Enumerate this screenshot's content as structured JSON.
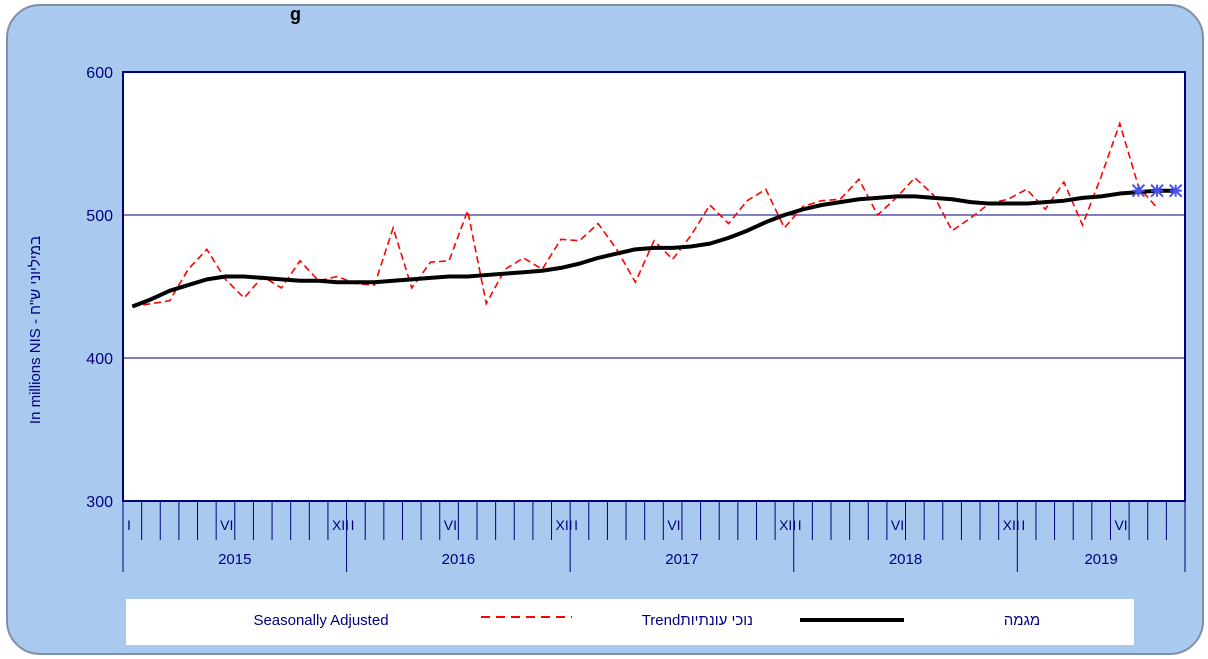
{
  "header": {
    "title_fragment": "g"
  },
  "chart_data": {
    "type": "line",
    "ylabel": "In millions NIS - במיליוני ש\"ח",
    "ylim": [
      300,
      600
    ],
    "yticks": [
      300,
      400,
      500,
      600
    ],
    "grid": "horizontal",
    "legend_position": "bottom",
    "years": [
      "2015",
      "2016",
      "2017",
      "2018",
      "2019"
    ],
    "month_labels": {
      "1": "I",
      "6": "VI",
      "12": "XII"
    },
    "months_total": 57,
    "series": [
      {
        "key": "seasonal",
        "style": "dashed",
        "color": "#ff0000",
        "values": [
          436,
          438,
          440,
          462,
          476,
          455,
          442,
          457,
          449,
          468,
          454,
          457,
          452,
          451,
          491,
          449,
          467,
          468,
          503,
          438,
          462,
          470,
          462,
          483,
          482,
          494,
          476,
          453,
          482,
          469,
          486,
          507,
          494,
          510,
          518,
          491,
          506,
          510,
          511,
          525,
          500,
          512,
          526,
          514,
          489,
          498,
          508,
          511,
          518,
          504,
          523,
          493,
          527,
          564,
          520,
          505
        ]
      },
      {
        "key": "trend",
        "style": "solid",
        "color": "#000000",
        "values": [
          436,
          441,
          447,
          451,
          455,
          457,
          457,
          456,
          455,
          454,
          454,
          453,
          453,
          453,
          454,
          455,
          456,
          457,
          457,
          458,
          459,
          460,
          461,
          463,
          466,
          470,
          473,
          476,
          477,
          477,
          478,
          480,
          484,
          489,
          495,
          500,
          504,
          507,
          509,
          511,
          512,
          513,
          513,
          512,
          511,
          509,
          508,
          508,
          508,
          509,
          510,
          512,
          513,
          515,
          516,
          517,
          517
        ]
      },
      {
        "key": "forecast",
        "style": "markers",
        "color": "#4a50ee",
        "marker": "asterisk",
        "start_index": 54,
        "values": [
          517,
          517,
          517
        ]
      }
    ],
    "legend": [
      {
        "label": "Seasonally Adjusted",
        "sample": ""
      },
      {
        "label": "Trendנוכי עונתיות",
        "sample": "dashed"
      },
      {
        "label": "מגמה",
        "sample": "solid"
      }
    ]
  }
}
